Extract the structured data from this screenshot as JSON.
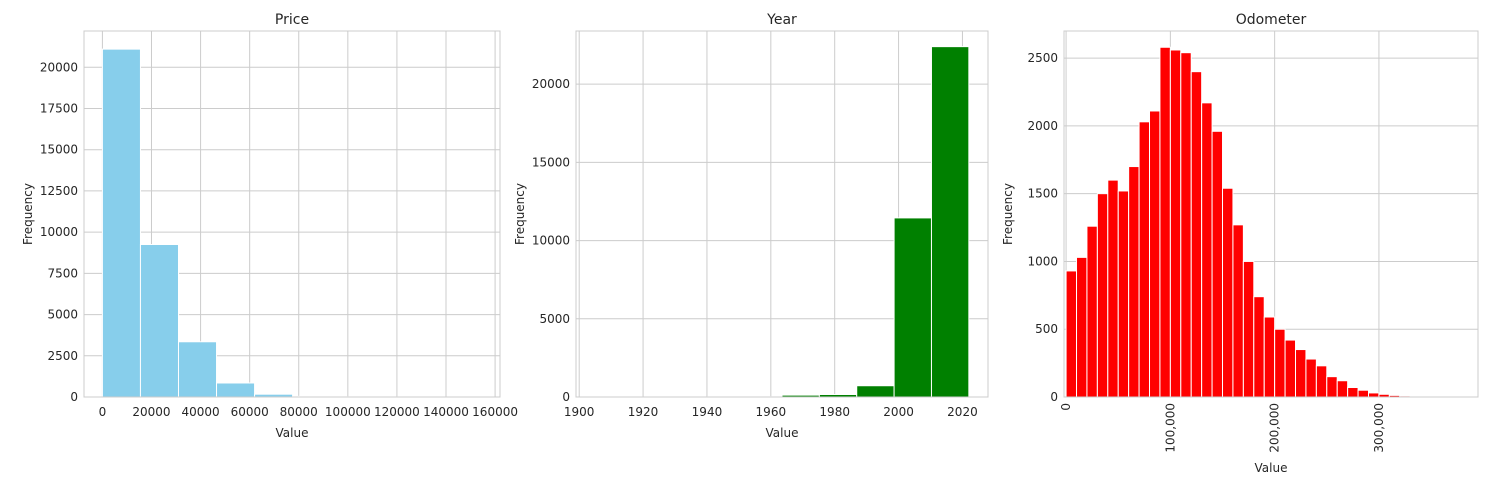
{
  "chart_data": [
    {
      "type": "bar",
      "title": "Price",
      "xlabel": "Value",
      "ylabel": "Frequency",
      "color": "#87ceeb",
      "xlim": [
        -7500,
        162000
      ],
      "ylim": [
        0,
        22200
      ],
      "xticks": [
        0,
        20000,
        40000,
        60000,
        80000,
        100000,
        120000,
        140000,
        160000
      ],
      "xtick_labels": [
        "0",
        "20000",
        "40000",
        "60000",
        "80000",
        "100000",
        "120000",
        "140000",
        "160000"
      ],
      "yticks": [
        0,
        2500,
        5000,
        7500,
        10000,
        12500,
        15000,
        17500,
        20000
      ],
      "ytick_labels": [
        "0",
        "2500",
        "5000",
        "7500",
        "10000",
        "12500",
        "15000",
        "17500",
        "20000"
      ],
      "bin_edges": [
        0,
        15500,
        31000,
        46500,
        62000,
        77500,
        93000,
        108500,
        124000,
        139500,
        155000
      ],
      "values": [
        21100,
        9250,
        3350,
        850,
        170,
        40,
        15,
        8,
        4,
        2
      ]
    },
    {
      "type": "bar",
      "title": "Year",
      "xlabel": "Value",
      "ylabel": "Frequency",
      "color": "#008000",
      "xlim": [
        1899,
        2028
      ],
      "ylim": [
        0,
        23400
      ],
      "xticks": [
        1900,
        1920,
        1940,
        1960,
        1980,
        2000,
        2020
      ],
      "xtick_labels": [
        "1900",
        "1920",
        "1940",
        "1960",
        "1980",
        "2000",
        "2020"
      ],
      "yticks": [
        0,
        5000,
        10000,
        15000,
        20000
      ],
      "ytick_labels": [
        "0",
        "5000",
        "10000",
        "15000",
        "20000"
      ],
      "bin_edges": [
        1905,
        1916.7,
        1928.4,
        1940.1,
        1951.8,
        1963.5,
        1975.2,
        1986.9,
        1998.6,
        2010.3,
        2022
      ],
      "values": [
        5,
        3,
        3,
        8,
        20,
        120,
        160,
        720,
        11450,
        22400
      ]
    },
    {
      "type": "bar",
      "title": "Odometer",
      "xlabel": "Value",
      "ylabel": "Frequency",
      "color": "#ff0000",
      "xlim": [
        -2000,
        395000
      ],
      "ylim": [
        0,
        2700
      ],
      "xticks": [
        0,
        100000,
        200000,
        300000
      ],
      "xtick_labels": [
        "0",
        "100,000",
        "200,000",
        "300,000"
      ],
      "yticks": [
        0,
        500,
        1000,
        1500,
        2000,
        2500
      ],
      "ytick_labels": [
        "0",
        "500",
        "1000",
        "1500",
        "2000",
        "2500"
      ],
      "bin_start": 0,
      "bin_width": 10000,
      "values": [
        930,
        1030,
        1260,
        1500,
        1600,
        1520,
        1700,
        2030,
        2110,
        2580,
        2560,
        2540,
        2400,
        2170,
        1960,
        1540,
        1270,
        1000,
        740,
        590,
        500,
        420,
        350,
        280,
        230,
        150,
        120,
        70,
        50,
        30,
        20,
        12,
        8,
        5,
        3,
        2
      ]
    }
  ]
}
